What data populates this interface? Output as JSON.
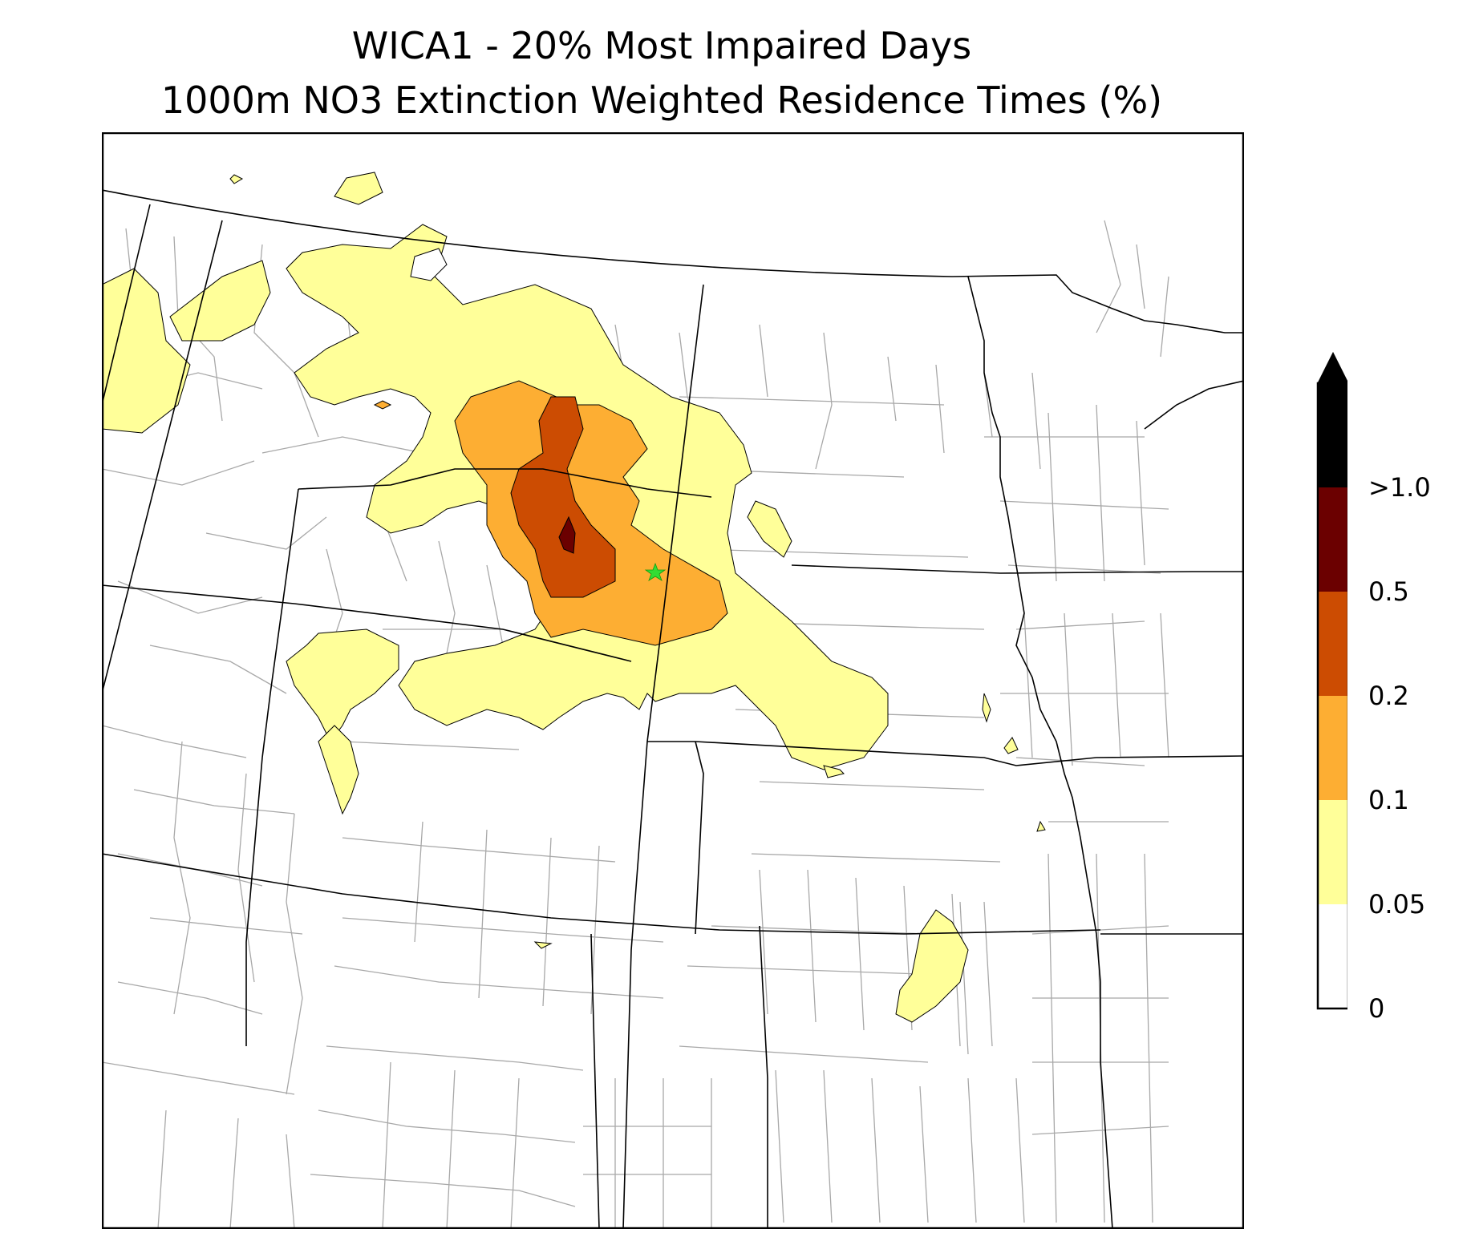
{
  "title": {
    "line1": "WICA1 - 20% Most Impaired Days",
    "line2": "1000m NO3 Extinction Weighted Residence Times (%)"
  },
  "map": {
    "receptor_marker": "green-star",
    "state_line_color": "#000000",
    "county_line_color": "#a8a8a8"
  },
  "legend": {
    "levels": [
      {
        "label": "0",
        "value": 0,
        "color": "#ffffff"
      },
      {
        "label": "0.05",
        "value": 0.05,
        "color": "#ffff99"
      },
      {
        "label": "0.1",
        "value": 0.1,
        "color": "#fdae33"
      },
      {
        "label": "0.2",
        "value": 0.2,
        "color": "#cc4c02"
      },
      {
        "label": "0.5",
        "value": 0.5,
        "color": "#6b0000"
      },
      {
        "label": ">1.0",
        "value": 1.0,
        "color": "#000000"
      }
    ],
    "extend": "max"
  }
}
